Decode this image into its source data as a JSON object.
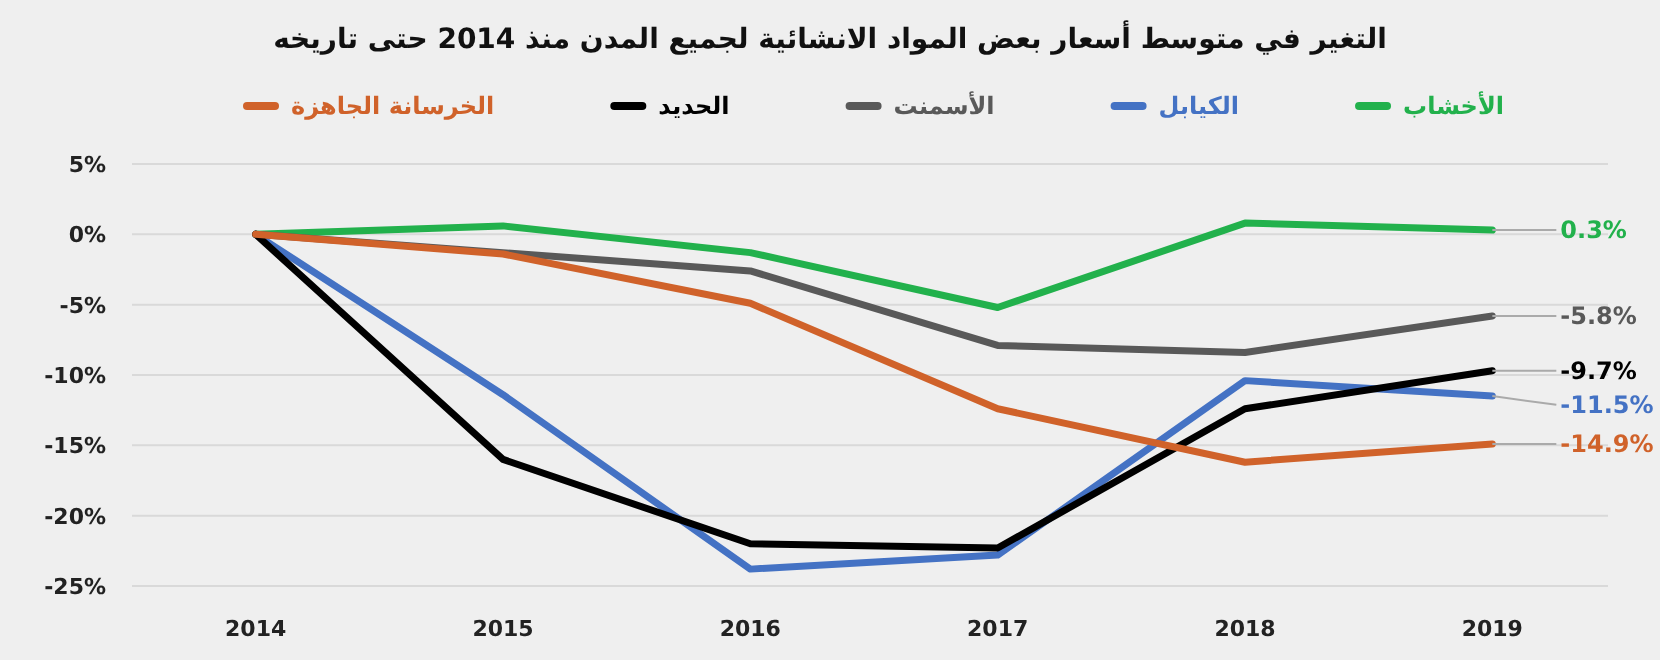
{
  "chart_data": {
    "type": "line",
    "title": "التغير في متوسط أسعار بعض المواد الانشائية لجميع المدن منذ 2014 حتى تاريخه",
    "categories": [
      "2014",
      "2015",
      "2016",
      "2017",
      "2018",
      "2019"
    ],
    "series": [
      {
        "name": "الأخشاب",
        "color": "#22b14c",
        "values": [
          0,
          0.6,
          -1.3,
          -5.2,
          0.8,
          0.3
        ],
        "value_labels": [
          null,
          null,
          null,
          null,
          null,
          "0.3%"
        ]
      },
      {
        "name": "الكيابل",
        "color": "#4472c4",
        "values": [
          0,
          -11.4,
          -23.8,
          -22.8,
          -10.4,
          -11.5
        ],
        "value_labels": [
          null,
          null,
          null,
          null,
          null,
          "-11.5%"
        ]
      },
      {
        "name": "الأسمنت",
        "color": "#595959",
        "values": [
          0,
          -1.3,
          -2.6,
          -7.9,
          -8.4,
          -5.8
        ],
        "value_labels": [
          null,
          null,
          null,
          null,
          null,
          "-5.8%"
        ]
      },
      {
        "name": "الحديد",
        "color": "#000000",
        "values": [
          0,
          -16.0,
          -22.0,
          -22.3,
          -12.4,
          -9.7
        ],
        "value_labels": [
          null,
          null,
          null,
          null,
          null,
          "-9.7%"
        ]
      },
      {
        "name": "الخرسانة الجاهزة",
        "color": "#d0622a",
        "values": [
          0,
          -1.4,
          -4.9,
          -12.4,
          -16.2,
          -14.9
        ],
        "value_labels": [
          null,
          null,
          null,
          null,
          null,
          "-14.9%"
        ]
      }
    ],
    "ylim": [
      -25,
      5
    ],
    "yticks": [
      {
        "value": 5,
        "label": "5%"
      },
      {
        "value": 0,
        "label": "0%"
      },
      {
        "value": -5,
        "label": "-5%"
      },
      {
        "value": -10,
        "label": "-10%"
      },
      {
        "value": -15,
        "label": "-15%"
      },
      {
        "value": -20,
        "label": "-20%"
      },
      {
        "value": -25,
        "label": "-25%"
      }
    ],
    "grid": "y",
    "legend": "top"
  }
}
